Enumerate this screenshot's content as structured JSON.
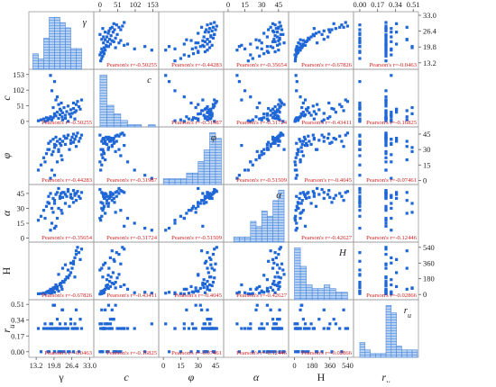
{
  "chart_data": {
    "type": "scatter",
    "variables": [
      {
        "key": "gamma",
        "label": "γ",
        "diag_label": "γ",
        "italic": false,
        "range": [
          10.5,
          34.5
        ],
        "ticks": [
          13.2,
          19.8,
          26.4,
          33.0
        ],
        "tick_labels": [
          "13.2",
          "19.8",
          "26.4",
          "33.0"
        ]
      },
      {
        "key": "c",
        "label": "c",
        "diag_label": "c",
        "italic": true,
        "range": [
          -18,
          170
        ],
        "ticks": [
          0,
          51,
          102,
          153
        ],
        "tick_labels": [
          "0",
          "51",
          "102",
          "153"
        ]
      },
      {
        "key": "phi",
        "label": "φ",
        "diag_label": "φ",
        "italic": true,
        "range": [
          -4,
          52
        ],
        "ticks": [
          0,
          15,
          30,
          45
        ],
        "tick_labels": [
          "0",
          "15",
          "30",
          "45"
        ]
      },
      {
        "key": "alpha",
        "label": "α",
        "diag_label": "α",
        "italic": true,
        "range": [
          -4,
          54
        ],
        "ticks": [
          0,
          15,
          30,
          45
        ],
        "tick_labels": [
          "0",
          "15",
          "30",
          "45"
        ]
      },
      {
        "key": "H",
        "label": "H",
        "diag_label": "H",
        "italic": false,
        "range": [
          -60,
          600
        ],
        "ticks": [
          0,
          180,
          360,
          540
        ],
        "tick_labels": [
          "0",
          "180",
          "360",
          "540"
        ]
      },
      {
        "key": "ru",
        "label": "r_u",
        "diag_label": "r_u",
        "italic": true,
        "range": [
          -0.06,
          0.56
        ],
        "ticks": [
          0.0,
          0.17,
          0.34,
          0.51
        ],
        "tick_labels": [
          "0.00",
          "0.17",
          "0.34",
          "0.51"
        ]
      }
    ],
    "top_axis_ticks": [
      {
        "var": "c",
        "ticks": [
          0,
          51,
          102,
          153
        ],
        "labels": [
          "0",
          "51",
          "102",
          "153"
        ]
      },
      {
        "var": "alpha",
        "ticks": [
          0,
          15,
          30,
          45
        ],
        "labels": [
          "0",
          "15",
          "30",
          "45"
        ]
      },
      {
        "var": "ru",
        "ticks": [
          0.0,
          0.17,
          0.34,
          0.51
        ],
        "labels": [
          "0.00",
          "0.17",
          "0.34",
          "0.51"
        ]
      }
    ],
    "right_axis_ticks": [
      {
        "var": "gamma",
        "ticks": [
          13.2,
          19.8,
          26.4,
          33.0
        ],
        "labels": [
          "13.2",
          "19.8",
          "26.4",
          "33.0"
        ]
      },
      {
        "var": "phi",
        "ticks": [
          0,
          15,
          30,
          45
        ],
        "labels": [
          "0",
          "15",
          "30",
          "45"
        ]
      },
      {
        "var": "H",
        "ticks": [
          0,
          180,
          360,
          540
        ],
        "labels": [
          "0",
          "180",
          "360",
          "540"
        ]
      }
    ],
    "left_axis_ticks": [
      {
        "var": "c",
        "ticks": [
          0,
          51,
          102,
          153
        ],
        "labels": [
          "0",
          "51",
          "102",
          "153"
        ]
      },
      {
        "var": "alpha",
        "ticks": [
          0,
          15,
          30,
          45
        ],
        "labels": [
          "0",
          "15",
          "30",
          "45"
        ]
      },
      {
        "var": "ru",
        "ticks": [
          0.0,
          0.17,
          0.34,
          0.51
        ],
        "labels": [
          "0.00",
          "0.17",
          "0.34",
          "0.51"
        ]
      }
    ],
    "bottom_axis_ticks": [
      {
        "var": "gamma",
        "ticks": [
          13.2,
          19.8,
          26.4,
          33.0
        ],
        "labels": [
          "13.2",
          "19.8",
          "26.4",
          "33.0"
        ]
      },
      {
        "var": "phi",
        "ticks": [
          0,
          15,
          30,
          45
        ],
        "labels": [
          "0",
          "15",
          "30",
          "45"
        ]
      },
      {
        "var": "H",
        "ticks": [
          0,
          180,
          360,
          540
        ],
        "labels": [
          "0",
          "180",
          "360",
          "540"
        ]
      }
    ],
    "pearson": {
      "gamma-c": "Pearson's r=-0.50255",
      "gamma-phi": "Pearson's r=-0.44283",
      "gamma-alpha": "Pearson's r=-0.35654",
      "gamma-H": "Pearson's r=-0.67826",
      "gamma-ru": "Pearson's r=-0.0463",
      "c-phi": "Pearson's r=-0.31987",
      "c-alpha": "Pearson's r=-0.31724",
      "c-H": "Pearson's r=-0.43411",
      "c-ru": "Pearson's r=-0.16825",
      "phi-alpha": "Pearson's r=-0.51509",
      "phi-H": "Pearson's r=-0.4045",
      "phi-ru": "Pearson's r=-0.07461",
      "alpha-H": "Pearson's r=-0.42627",
      "alpha-ru": "Pearson's r=-0.12446",
      "H-ru": "Pearson's r=-0.02866"
    },
    "points": [
      {
        "gamma": 17.8,
        "c": 10,
        "phi": 36,
        "alpha": 42,
        "H": 20,
        "ru": 0.25
      },
      {
        "gamma": 18.0,
        "c": 8,
        "phi": 30,
        "alpha": 35,
        "H": 40,
        "ru": 0.0
      },
      {
        "gamma": 18.5,
        "c": 15,
        "phi": 38,
        "alpha": 45,
        "H": 60,
        "ru": 0.25
      },
      {
        "gamma": 19.0,
        "c": 5,
        "phi": 25,
        "alpha": 30,
        "H": 30,
        "ru": 0.3
      },
      {
        "gamma": 19.5,
        "c": 12,
        "phi": 40,
        "alpha": 40,
        "H": 50,
        "ru": 0.25
      },
      {
        "gamma": 20.0,
        "c": 20,
        "phi": 35,
        "alpha": 38,
        "H": 80,
        "ru": 0.0
      },
      {
        "gamma": 20.0,
        "c": 25,
        "phi": 32,
        "alpha": 35,
        "H": 70,
        "ru": 0.5
      },
      {
        "gamma": 20.5,
        "c": 18,
        "phi": 42,
        "alpha": 44,
        "H": 100,
        "ru": 0.25
      },
      {
        "gamma": 21.0,
        "c": 30,
        "phi": 38,
        "alpha": 46,
        "H": 90,
        "ru": 0.35
      },
      {
        "gamma": 21.5,
        "c": 10,
        "phi": 28,
        "alpha": 30,
        "H": 40,
        "ru": 0.25
      },
      {
        "gamma": 22.0,
        "c": 40,
        "phi": 36,
        "alpha": 40,
        "H": 120,
        "ru": 0.0
      },
      {
        "gamma": 22.0,
        "c": 22,
        "phi": 40,
        "alpha": 42,
        "H": 110,
        "ru": 0.3
      },
      {
        "gamma": 22.4,
        "c": 35,
        "phi": 34,
        "alpha": 45,
        "H": 130,
        "ru": 0.25
      },
      {
        "gamma": 22.8,
        "c": 15,
        "phi": 20,
        "alpha": 25,
        "H": 60,
        "ru": 0.45
      },
      {
        "gamma": 23.0,
        "c": 28,
        "phi": 38,
        "alpha": 41,
        "H": 150,
        "ru": 0.25
      },
      {
        "gamma": 23.5,
        "c": 45,
        "phi": 43,
        "alpha": 46,
        "H": 140,
        "ru": 0.0
      },
      {
        "gamma": 24.0,
        "c": 20,
        "phi": 35,
        "alpha": 35,
        "H": 170,
        "ru": 0.3
      },
      {
        "gamma": 24.5,
        "c": 32,
        "phi": 41,
        "alpha": 42,
        "H": 200,
        "ru": 0.25
      },
      {
        "gamma": 25.0,
        "c": 50,
        "phi": 44,
        "alpha": 47,
        "H": 190,
        "ru": 0.25
      },
      {
        "gamma": 25.5,
        "c": 24,
        "phi": 30,
        "alpha": 32,
        "H": 220,
        "ru": 0.0
      },
      {
        "gamma": 26.0,
        "c": 38,
        "phi": 39,
        "alpha": 44,
        "H": 250,
        "ru": 0.35
      },
      {
        "gamma": 26.5,
        "c": 26,
        "phi": 42,
        "alpha": 40,
        "H": 300,
        "ru": 0.25
      },
      {
        "gamma": 27.0,
        "c": 60,
        "phi": 45,
        "alpha": 48,
        "H": 350,
        "ru": 0.25
      },
      {
        "gamma": 27.0,
        "c": 42,
        "phi": 37,
        "alpha": 36,
        "H": 380,
        "ru": 0.0
      },
      {
        "gamma": 27.5,
        "c": 30,
        "phi": 40,
        "alpha": 43,
        "H": 420,
        "ru": 0.3
      },
      {
        "gamma": 28.0,
        "c": 55,
        "phi": 43,
        "alpha": 45,
        "H": 460,
        "ru": 0.25
      },
      {
        "gamma": 28.0,
        "c": 35,
        "phi": 33,
        "alpha": 38,
        "H": 500,
        "ru": 0.45
      },
      {
        "gamma": 28.5,
        "c": 65,
        "phi": 46,
        "alpha": 47,
        "H": 540,
        "ru": 0.25
      },
      {
        "gamma": 29.0,
        "c": 48,
        "phi": 38,
        "alpha": 42,
        "H": 480,
        "ru": 0.0
      },
      {
        "gamma": 29.5,
        "c": 40,
        "phi": 41,
        "alpha": 40,
        "H": 400,
        "ru": 0.35
      },
      {
        "gamma": 30.0,
        "c": 70,
        "phi": 44,
        "alpha": 46,
        "H": 520,
        "ru": 0.25
      },
      {
        "gamma": 15.0,
        "c": 5,
        "phi": 15,
        "alpha": 22,
        "H": 10,
        "ru": 0.0
      },
      {
        "gamma": 16.0,
        "c": 8,
        "phi": 22,
        "alpha": 28,
        "H": 15,
        "ru": 0.25
      },
      {
        "gamma": 16.5,
        "c": 0,
        "phi": 18,
        "alpha": 20,
        "H": 5,
        "ru": 0.3
      },
      {
        "gamma": 17.0,
        "c": 12,
        "phi": 26,
        "alpha": 32,
        "H": 25,
        "ru": 0.25
      },
      {
        "gamma": 17.5,
        "c": 3,
        "phi": 30,
        "alpha": 36,
        "H": 35,
        "ru": 0.0
      },
      {
        "gamma": 14.0,
        "c": 2,
        "phi": 10,
        "alpha": 18,
        "H": 8,
        "ru": 0.25
      },
      {
        "gamma": 19.0,
        "c": 100,
        "phi": 10,
        "alpha": 15,
        "H": 20,
        "ru": 0.25
      },
      {
        "gamma": 20.0,
        "c": 130,
        "phi": 5,
        "alpha": 10,
        "H": 25,
        "ru": 0.0
      },
      {
        "gamma": 18.5,
        "c": 150,
        "phi": 2,
        "alpha": 8,
        "H": 15,
        "ru": 0.3
      },
      {
        "gamma": 21.0,
        "c": 80,
        "phi": 18,
        "alpha": 20,
        "H": 60,
        "ru": 0.25
      },
      {
        "gamma": 22.5,
        "c": 60,
        "phi": 24,
        "alpha": 28,
        "H": 90,
        "ru": 0.0
      },
      {
        "gamma": 23.0,
        "c": 5,
        "phi": 38,
        "alpha": 46,
        "H": 300,
        "ru": 0.45
      },
      {
        "gamma": 24.0,
        "c": 10,
        "phi": 41,
        "alpha": 44,
        "H": 340,
        "ru": 0.25
      },
      {
        "gamma": 25.0,
        "c": 0,
        "phi": 44,
        "alpha": 49,
        "H": 280,
        "ru": 0.0
      },
      {
        "gamma": 26.0,
        "c": 15,
        "phi": 36,
        "alpha": 41,
        "H": 360,
        "ru": 0.3
      },
      {
        "gamma": 27.5,
        "c": 8,
        "phi": 40,
        "alpha": 45,
        "H": 200,
        "ru": 0.25
      },
      {
        "gamma": 21.5,
        "c": 55,
        "phi": 30,
        "alpha": 50,
        "H": 230,
        "ru": 0.0
      },
      {
        "gamma": 20.5,
        "c": 70,
        "phi": 34,
        "alpha": 12,
        "H": 110,
        "ru": 0.25
      },
      {
        "gamma": 19.5,
        "c": 45,
        "phi": 28,
        "alpha": 26,
        "H": 75,
        "ru": 0.5
      }
    ],
    "diagonal_histograms": [
      {
        "var": "gamma",
        "bins": [
          12,
          14,
          16,
          18,
          20,
          22,
          24,
          26,
          28,
          30
        ],
        "counts": [
          3,
          2,
          6,
          10,
          10,
          9,
          8,
          4,
          4
        ],
        "label_pos": "top-right"
      },
      {
        "var": "c",
        "bins": [
          0,
          20,
          40,
          60,
          80,
          100,
          120,
          140,
          160
        ],
        "counts": [
          24,
          10,
          6,
          3,
          1,
          1,
          0,
          1
        ],
        "label_pos": "top-right"
      },
      {
        "var": "phi",
        "bins": [
          0,
          5,
          10,
          15,
          20,
          25,
          30,
          35,
          40,
          45,
          50
        ],
        "counts": [
          1,
          1,
          1,
          1,
          2,
          2,
          4,
          6,
          9,
          8
        ],
        "label_pos": "top-right"
      },
      {
        "var": "alpha",
        "bins": [
          5,
          10,
          15,
          20,
          25,
          30,
          35,
          40,
          45,
          50
        ],
        "counts": [
          1,
          1,
          1,
          4,
          3,
          6,
          5,
          8,
          10
        ],
        "label_pos": "top-right"
      },
      {
        "var": "H",
        "bins": [
          0,
          60,
          120,
          180,
          240,
          300,
          360,
          420,
          480,
          540
        ],
        "counts": [
          14,
          9,
          4,
          3,
          3,
          4,
          3,
          2,
          2
        ],
        "label_pos": "top-right"
      },
      {
        "var": "ru",
        "bins": [
          0.0,
          0.05,
          0.1,
          0.15,
          0.2,
          0.25,
          0.3,
          0.35,
          0.4,
          0.45,
          0.5,
          0.55
        ],
        "counts": [
          4,
          2,
          1,
          1,
          1,
          14,
          12,
          3,
          2,
          2,
          2
        ],
        "label_pos": "top-right"
      }
    ],
    "colors": {
      "point": "#1f66d6",
      "bar_fill": "#b7d1f2",
      "bar_hatch": "#5c95e0",
      "bar_edge": "#4a86dc",
      "grid": "#9a9a9a",
      "pearson": "#d22020"
    }
  }
}
